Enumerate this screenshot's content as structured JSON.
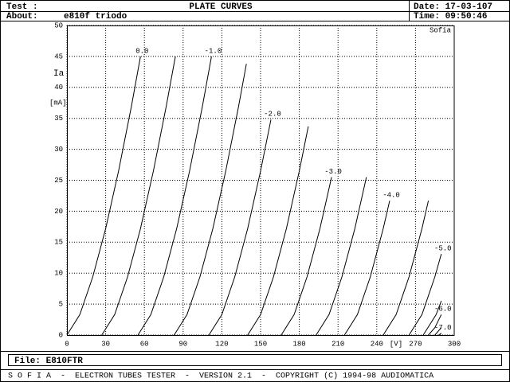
{
  "header": {
    "test_label": "Test :",
    "title": "PLATE CURVES",
    "date": "Date: 17-03-107",
    "about_label": "About:",
    "about": "e810f triodo",
    "time": "Time: 09:50:46"
  },
  "chart_data": {
    "type": "line",
    "brand": "Sofia",
    "y_label": "Ia",
    "y_unit": "[mA]",
    "x_label": "[V]",
    "color": "#000000",
    "grid": true,
    "xlim": [
      0,
      300
    ],
    "xticks": [
      0,
      30,
      60,
      90,
      120,
      150,
      180,
      210,
      240,
      270,
      300
    ],
    "ylim": [
      0,
      50
    ],
    "yticks": [
      0,
      5,
      10,
      15,
      20,
      25,
      30,
      35,
      40,
      45,
      50
    ],
    "series": [
      {
        "name": "0.0",
        "x": [
          0,
          10,
          20,
          30,
          40,
          50,
          57
        ],
        "values": [
          0,
          3.3,
          9.4,
          17.2,
          26.5,
          37.0,
          45.0
        ]
      },
      {
        "x": [
          27,
          37,
          47,
          57,
          67,
          77,
          84
        ],
        "values": [
          0,
          3.3,
          9.4,
          17.2,
          26.5,
          37.0,
          45.0
        ]
      },
      {
        "name": "-1.0",
        "x": [
          55,
          65,
          75,
          85,
          95,
          105,
          112
        ],
        "values": [
          0,
          3.3,
          9.4,
          17.2,
          26.5,
          37.0,
          45.0
        ]
      },
      {
        "x": [
          83,
          93,
          103,
          113,
          123,
          133,
          139
        ],
        "values": [
          0,
          3.3,
          9.4,
          17.2,
          26.5,
          37.0,
          43.8
        ]
      },
      {
        "name": "-2.0",
        "x": [
          110,
          120,
          130,
          140,
          150,
          158
        ],
        "values": [
          0,
          3.3,
          9.4,
          17.2,
          26.5,
          34.8
        ]
      },
      {
        "x": [
          140,
          150,
          160,
          170,
          180,
          187
        ],
        "values": [
          0,
          3.3,
          9.4,
          17.2,
          26.5,
          33.7
        ]
      },
      {
        "name": "-3.0",
        "x": [
          166,
          176,
          186,
          196,
          205
        ],
        "values": [
          0,
          3.3,
          9.4,
          17.2,
          25.5
        ]
      },
      {
        "x": [
          193,
          203,
          213,
          223,
          232
        ],
        "values": [
          0,
          3.3,
          9.4,
          17.2,
          25.5
        ]
      },
      {
        "name": "-4.0",
        "x": [
          215,
          225,
          235,
          245,
          250
        ],
        "values": [
          0,
          3.3,
          9.4,
          17.2,
          21.7
        ]
      },
      {
        "x": [
          245,
          255,
          265,
          275,
          280
        ],
        "values": [
          0,
          3.3,
          9.4,
          17.2,
          21.7
        ]
      },
      {
        "name": "-5.0",
        "x": [
          265,
          275,
          285,
          290
        ],
        "values": [
          0,
          3.3,
          9.4,
          13.1
        ]
      },
      {
        "x": [
          276,
          286,
          290
        ],
        "values": [
          0,
          3.3,
          5.5
        ]
      },
      {
        "name": "-6.0",
        "x": [
          280,
          285,
          290
        ],
        "values": [
          0,
          1.2,
          3.3
        ]
      },
      {
        "x": [
          285,
          290
        ],
        "values": [
          0,
          1.2
        ]
      },
      {
        "name": "-7.0",
        "x": [
          288,
          290
        ],
        "values": [
          0,
          0.3
        ]
      }
    ]
  },
  "file": "File: E810FTR",
  "footer": "S O F I A  -  ELECTRON TUBES TESTER  -  VERSION 2.1  -  COPYRIGHT (C) 1994-98 AUDIOMATICA"
}
